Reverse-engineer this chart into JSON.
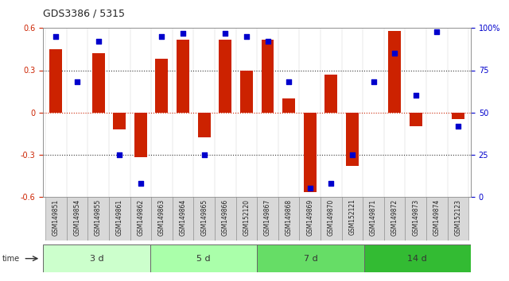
{
  "title": "GDS3386 / 5315",
  "samples": [
    "GSM149851",
    "GSM149854",
    "GSM149855",
    "GSM149861",
    "GSM149862",
    "GSM149863",
    "GSM149864",
    "GSM149865",
    "GSM149866",
    "GSM152120",
    "GSM149867",
    "GSM149868",
    "GSM149869",
    "GSM149870",
    "GSM152121",
    "GSM149871",
    "GSM149872",
    "GSM149873",
    "GSM149874",
    "GSM152123"
  ],
  "log2_ratio": [
    0.45,
    0.0,
    0.42,
    -0.12,
    -0.32,
    0.38,
    0.52,
    -0.18,
    0.52,
    0.3,
    0.52,
    0.1,
    -0.57,
    0.27,
    -0.38,
    0.0,
    0.58,
    -0.1,
    0.0,
    -0.05
  ],
  "percentile": [
    95,
    68,
    92,
    25,
    8,
    95,
    97,
    25,
    97,
    95,
    92,
    68,
    5,
    8,
    25,
    68,
    85,
    60,
    98,
    42
  ],
  "groups": [
    {
      "label": "3 d",
      "start": 0,
      "end": 5,
      "color": "#ccffcc"
    },
    {
      "label": "5 d",
      "start": 5,
      "end": 10,
      "color": "#aaffaa"
    },
    {
      "label": "7 d",
      "start": 10,
      "end": 15,
      "color": "#66dd66"
    },
    {
      "label": "14 d",
      "start": 15,
      "end": 20,
      "color": "#33bb33"
    }
  ],
  "bar_color": "#cc2200",
  "dot_color": "#0000cc",
  "ylim": [
    -0.6,
    0.6
  ],
  "y2lim": [
    0,
    100
  ],
  "yticks": [
    -0.6,
    -0.3,
    0.0,
    0.3,
    0.6
  ],
  "y2ticks": [
    0,
    25,
    50,
    75,
    100
  ],
  "hline_color": "#cc2200",
  "grid_color": "#333333",
  "bg_color": "#ffffff",
  "plot_bg": "#ffffff"
}
